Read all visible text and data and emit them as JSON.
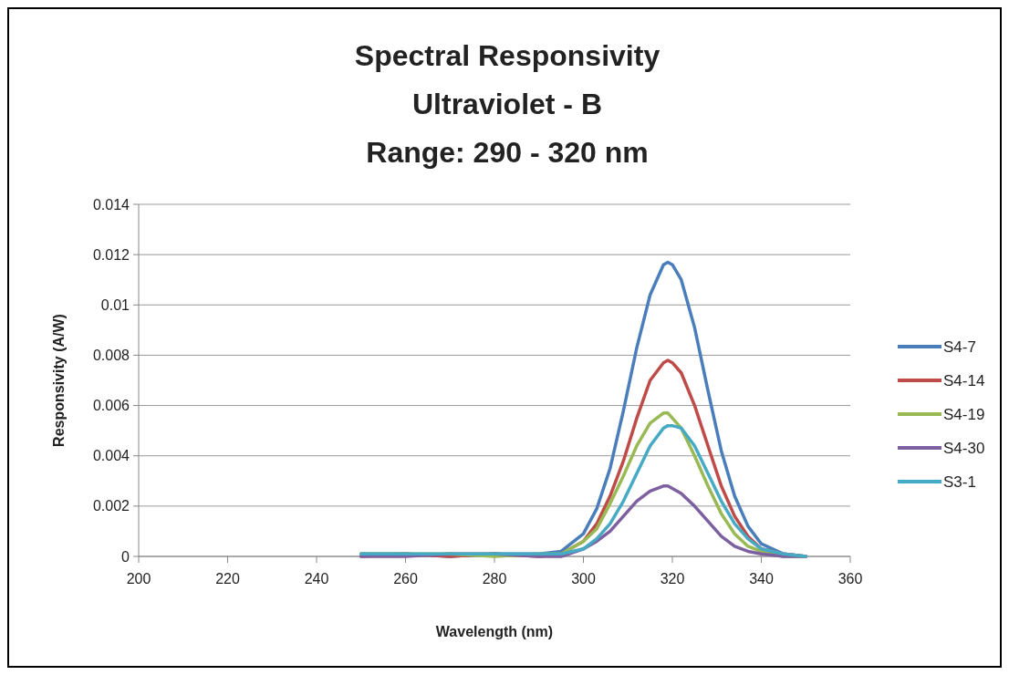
{
  "chart_data": {
    "type": "line",
    "title": "Spectral Responsivity\nUltraviolet - B\nRange: 290 - 320 nm",
    "xlabel": "Wavelength (nm)",
    "ylabel": "Responsivity (A/W)",
    "x": [
      250,
      260,
      270,
      280,
      290,
      295,
      300,
      303,
      306,
      309,
      312,
      315,
      318,
      319,
      320,
      322,
      325,
      328,
      331,
      334,
      337,
      340,
      345,
      350
    ],
    "series": [
      {
        "name": "S4-7",
        "color": "#4a7ebb",
        "values": [
          0.0001,
          0.0001,
          0,
          0.0001,
          0.0001,
          0.0002,
          0.0009,
          0.0019,
          0.0035,
          0.0058,
          0.0083,
          0.0104,
          0.0116,
          0.0117,
          0.0116,
          0.011,
          0.0091,
          0.0066,
          0.0042,
          0.0024,
          0.0012,
          0.0005,
          0.0001,
          0
        ]
      },
      {
        "name": "S4-14",
        "color": "#be4b48",
        "values": [
          0,
          0.0001,
          0,
          0.0001,
          0,
          0.0001,
          0.0006,
          0.0013,
          0.0024,
          0.0038,
          0.0055,
          0.007,
          0.0077,
          0.0078,
          0.0077,
          0.0073,
          0.006,
          0.0044,
          0.0028,
          0.0016,
          0.0008,
          0.0003,
          0.0001,
          0
        ]
      },
      {
        "name": "S4-19",
        "color": "#98b954",
        "values": [
          0.0001,
          0.0001,
          0.0001,
          0,
          0.0001,
          0.0001,
          0.0006,
          0.0011,
          0.0021,
          0.0032,
          0.0044,
          0.0053,
          0.0057,
          0.0057,
          0.0055,
          0.0051,
          0.004,
          0.0028,
          0.0017,
          0.0009,
          0.0004,
          0.0002,
          0,
          0
        ]
      },
      {
        "name": "S4-30",
        "color": "#7d60a0",
        "values": [
          0,
          0,
          0.0001,
          0.0001,
          0,
          0,
          0.0003,
          0.0006,
          0.001,
          0.0016,
          0.0022,
          0.0026,
          0.0028,
          0.0028,
          0.0027,
          0.0025,
          0.002,
          0.0014,
          0.0008,
          0.0004,
          0.0002,
          0.0001,
          0,
          0
        ]
      },
      {
        "name": "S3-1",
        "color": "#46aac5",
        "values": [
          0.0001,
          0.0001,
          0.0001,
          0.0001,
          0.0001,
          0.0001,
          0.0003,
          0.0007,
          0.0013,
          0.0022,
          0.0033,
          0.0044,
          0.0051,
          0.0052,
          0.0052,
          0.0051,
          0.0044,
          0.0033,
          0.0022,
          0.0013,
          0.0007,
          0.0003,
          0.0001,
          0
        ]
      }
    ],
    "xlim": [
      200,
      360
    ],
    "xticks": [
      200,
      220,
      240,
      260,
      280,
      300,
      320,
      340,
      360
    ],
    "ylim": [
      0,
      0.014
    ],
    "yticks": [
      0,
      0.002,
      0.004,
      0.006,
      0.008,
      0.01,
      0.012,
      0.014
    ],
    "grid": "y",
    "legend": "right",
    "marker": "none",
    "line_style": "solid"
  }
}
